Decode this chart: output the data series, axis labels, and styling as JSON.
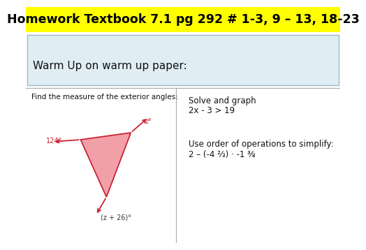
{
  "title": "Homework Textbook 7.1 pg 292 # 1-3, 9 – 13, 18-23",
  "title_bg": "#FFFF00",
  "title_color": "#000000",
  "warm_up_text": "Warm Up on warm up paper:",
  "warm_up_bg": "#E0EEF4",
  "left_label": "Find the measure of the exterior angles:",
  "right_text1": "Solve and graph",
  "right_text2": "2x - 3 > 19",
  "right_text3": "Use order of operations to simplify:",
  "right_text4": "2 – (-4 ⅔) · -1 ⅜",
  "triangle_fill": "#F2A0A8",
  "triangle_stroke": "#CC2233",
  "angle1_label": "124°",
  "angle2_label": "z°",
  "angle3_label": "(z + 26)°",
  "bg_color": "#FFFFFF",
  "border_color": "#AAAAAA",
  "title_fontsize": 12.5,
  "body_fontsize": 8.5,
  "small_fontsize": 7.5
}
